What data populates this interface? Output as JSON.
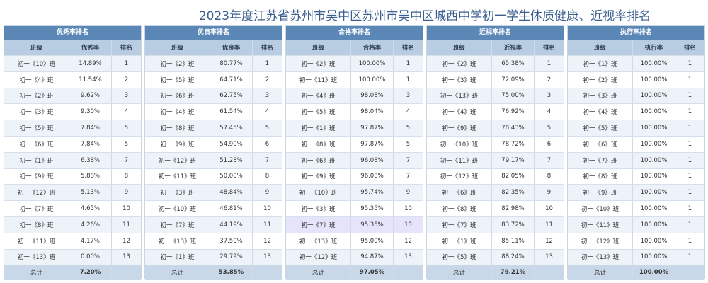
{
  "title": "2023年度江苏省苏州市吴中区苏州市吴中区城西中学初一学生体质健康、近视率排名",
  "tables": [
    {
      "caption": "优秀率排名",
      "headers": [
        "班级",
        "优秀率",
        "排名"
      ],
      "rows": [
        [
          "初一《10》班",
          "14.89%",
          "1"
        ],
        [
          "初一《4》班",
          "11.54%",
          "2"
        ],
        [
          "初一《2》班",
          "9.62%",
          "3"
        ],
        [
          "初一《3》班",
          "9.30%",
          "4"
        ],
        [
          "初一《5》班",
          "7.84%",
          "5"
        ],
        [
          "初一《6》班",
          "7.84%",
          "5"
        ],
        [
          "初一《1》班",
          "6.38%",
          "7"
        ],
        [
          "初一《9》班",
          "5.88%",
          "8"
        ],
        [
          "初一《12》班",
          "5.13%",
          "9"
        ],
        [
          "初一《7》班",
          "4.65%",
          "10"
        ],
        [
          "初一《8》班",
          "4.26%",
          "11"
        ],
        [
          "初一《11》班",
          "4.17%",
          "12"
        ],
        [
          "初一《13》班",
          "0.00%",
          "13"
        ]
      ],
      "total": [
        "总计",
        "7.20%",
        ""
      ]
    },
    {
      "caption": "优良率排名",
      "headers": [
        "班级",
        "优良率",
        "排名"
      ],
      "rows": [
        [
          "初一《2》班",
          "80.77%",
          "1"
        ],
        [
          "初一《5》班",
          "64.71%",
          "2"
        ],
        [
          "初一《6》班",
          "62.75%",
          "3"
        ],
        [
          "初一《4》班",
          "61.54%",
          "4"
        ],
        [
          "初一《8》班",
          "57.45%",
          "5"
        ],
        [
          "初一《9》班",
          "54.90%",
          "6"
        ],
        [
          "初一《12》班",
          "51.28%",
          "7"
        ],
        [
          "初一《11》班",
          "50.00%",
          "8"
        ],
        [
          "初一《3》班",
          "48.84%",
          "9"
        ],
        [
          "初一《10》班",
          "46.81%",
          "10"
        ],
        [
          "初一《7》班",
          "44.19%",
          "11"
        ],
        [
          "初一《13》班",
          "37.50%",
          "12"
        ],
        [
          "初一《1》班",
          "29.79%",
          "13"
        ]
      ],
      "total": [
        "总计",
        "53.85%",
        ""
      ]
    },
    {
      "caption": "合格率排名",
      "headers": [
        "班级",
        "合格率",
        "排名"
      ],
      "rows": [
        [
          "初一《2》班",
          "100.00%",
          "1"
        ],
        [
          "初一《11》班",
          "100.00%",
          "1"
        ],
        [
          "初一《4》班",
          "98.08%",
          "3"
        ],
        [
          "初一《5》班",
          "98.04%",
          "4"
        ],
        [
          "初一《1》班",
          "97.87%",
          "5"
        ],
        [
          "初一《8》班",
          "97.87%",
          "5"
        ],
        [
          "初一《6》班",
          "96.08%",
          "7"
        ],
        [
          "初一《9》班",
          "96.08%",
          "7"
        ],
        [
          "初一《10》班",
          "95.74%",
          "9"
        ],
        [
          "初一《3》班",
          "95.35%",
          "10"
        ],
        [
          "初一《7》班",
          "95.35%",
          "10"
        ],
        [
          "初一《13》班",
          "95.00%",
          "12"
        ],
        [
          "初一《12》班",
          "94.87%",
          "13"
        ]
      ],
      "total": [
        "总计",
        "97.05%",
        ""
      ],
      "highlight_row": 10
    },
    {
      "caption": "近视率排名",
      "headers": [
        "班级",
        "近视率",
        "排名"
      ],
      "rows": [
        [
          "初一《2》班",
          "65.38%",
          "1"
        ],
        [
          "初一《3》班",
          "72.09%",
          "2"
        ],
        [
          "初一《13》班",
          "75.00%",
          "3"
        ],
        [
          "初一《4》班",
          "76.92%",
          "4"
        ],
        [
          "初一《9》班",
          "78.43%",
          "5"
        ],
        [
          "初一《10》班",
          "78.72%",
          "6"
        ],
        [
          "初一《11》班",
          "79.17%",
          "7"
        ],
        [
          "初一《12》班",
          "82.05%",
          "8"
        ],
        [
          "初一《6》班",
          "82.35%",
          "9"
        ],
        [
          "初一《8》班",
          "82.98%",
          "10"
        ],
        [
          "初一《7》班",
          "83.72%",
          "11"
        ],
        [
          "初一《1》班",
          "85.11%",
          "12"
        ],
        [
          "初一《5》班",
          "88.24%",
          "13"
        ]
      ],
      "total": [
        "总计",
        "79.21%",
        ""
      ]
    },
    {
      "caption": "执行率排名",
      "headers": [
        "班级",
        "执行率",
        "排名"
      ],
      "rows": [
        [
          "初一《1》班",
          "100.00%",
          "1"
        ],
        [
          "初一《2》班",
          "100.00%",
          "1"
        ],
        [
          "初一《3》班",
          "100.00%",
          "1"
        ],
        [
          "初一《4》班",
          "100.00%",
          "1"
        ],
        [
          "初一《5》班",
          "100.00%",
          "1"
        ],
        [
          "初一《6》班",
          "100.00%",
          "1"
        ],
        [
          "初一《7》班",
          "100.00%",
          "1"
        ],
        [
          "初一《8》班",
          "100.00%",
          "1"
        ],
        [
          "初一《9》班",
          "100.00%",
          "1"
        ],
        [
          "初一《10》班",
          "100.00%",
          "1"
        ],
        [
          "初一《11》班",
          "100.00%",
          "1"
        ],
        [
          "初一《12》班",
          "100.00%",
          "1"
        ],
        [
          "初一《13》班",
          "100.00%",
          "1"
        ]
      ],
      "total": [
        "总计",
        "100.00%",
        ""
      ]
    }
  ]
}
